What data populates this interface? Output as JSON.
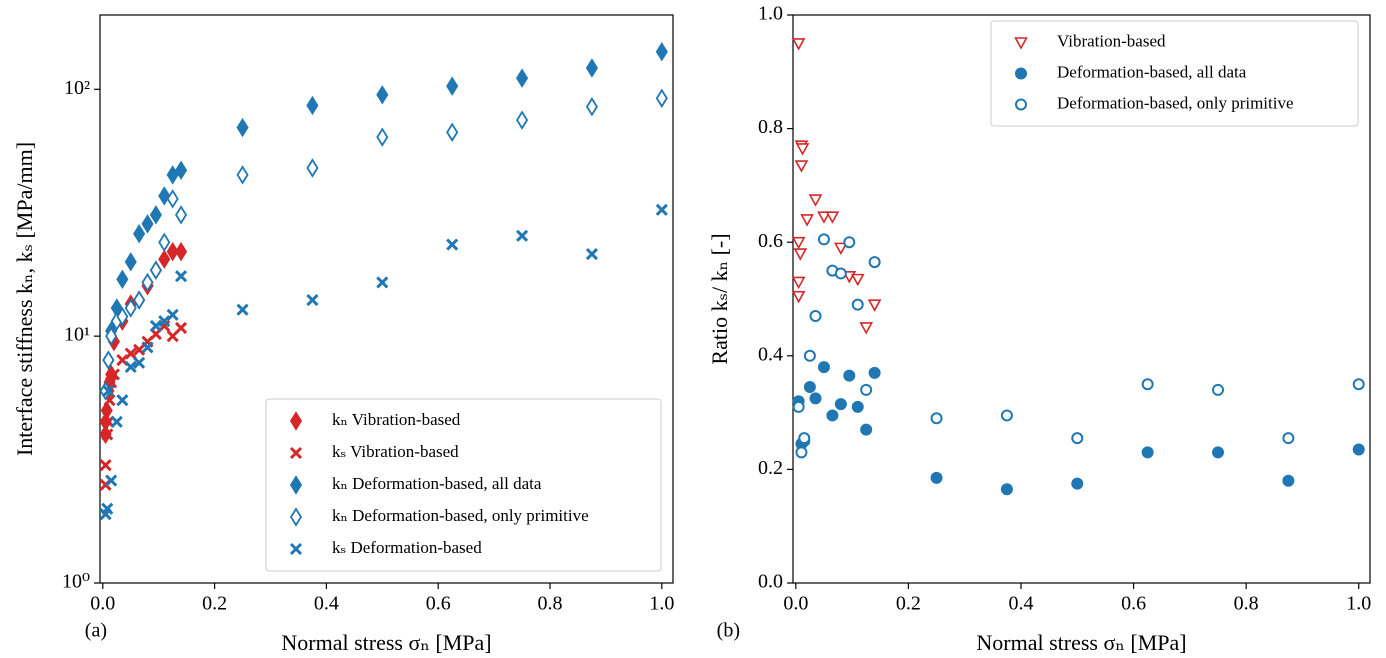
{
  "chart_data": [
    {
      "type": "scatter",
      "panel_label": "(a)",
      "xlabel": "Normal stress σₙ [MPa]",
      "ylabel": "Interface stiffness kₙ, kₛ [MPa/mm]",
      "log_y": true,
      "xlim": [
        -0.005,
        1.02
      ],
      "ylim": [
        1,
        200
      ],
      "xticks": [
        {
          "value": 0,
          "label": "0.0"
        },
        0.2,
        0.4,
        0.6,
        0.8,
        {
          "value": 1,
          "label": "1.0"
        }
      ],
      "yticks": [
        {
          "value": 1,
          "label": "10⁰"
        },
        {
          "value": 10,
          "label": "10¹"
        },
        {
          "value": 100,
          "label": "10²"
        }
      ],
      "legend": "lower right",
      "series": [
        {
          "name": "kₙ Vibration-based",
          "color": "#d62728",
          "marker": "diamond",
          "x": [
            0.005,
            0.005,
            0.007,
            0.01,
            0.012,
            0.015,
            0.02,
            0.035,
            0.05,
            0.065,
            0.08,
            0.095,
            0.11,
            0.125,
            0.14
          ],
          "values": [
            4.0,
            4.5,
            5.0,
            6.0,
            6.5,
            7.0,
            9.5,
            11.5,
            13.5,
            14,
            16,
            18.5,
            20.5,
            22,
            22
          ]
        },
        {
          "name": "kₛ Vibration-based",
          "color": "#d62728",
          "marker": "x",
          "x": [
            0.005,
            0.005,
            0.008,
            0.01,
            0.012,
            0.015,
            0.02,
            0.035,
            0.05,
            0.065,
            0.08,
            0.095,
            0.11,
            0.125,
            0.14
          ],
          "values": [
            2.5,
            3.0,
            4.0,
            4.5,
            5.5,
            6.5,
            7.0,
            8.0,
            8.5,
            8.8,
            9.5,
            10.2,
            11,
            10,
            10.8
          ]
        },
        {
          "name": "kₙ Deformation-based, all data",
          "color": "#1f77b4",
          "marker": "diamond",
          "x": [
            0.005,
            0.01,
            0.015,
            0.025,
            0.035,
            0.05,
            0.065,
            0.08,
            0.095,
            0.11,
            0.125,
            0.14,
            0.25,
            0.375,
            0.5,
            0.625,
            0.75,
            0.875,
            1.0
          ],
          "values": [
            6,
            8,
            10.5,
            13,
            17,
            20,
            26,
            28.5,
            31,
            37,
            45,
            47,
            70,
            86,
            95,
            103,
            111,
            122,
            142
          ]
        },
        {
          "name": "kₙ Deformation-based, only primitive",
          "color": "#1f77b4",
          "marker": "diamond-open",
          "x": [
            0.005,
            0.01,
            0.015,
            0.025,
            0.035,
            0.05,
            0.065,
            0.08,
            0.095,
            0.11,
            0.125,
            0.14,
            0.25,
            0.375,
            0.5,
            0.625,
            0.75,
            0.875,
            1.0
          ],
          "values": [
            6,
            8,
            10,
            11.5,
            12,
            13,
            14,
            16.5,
            18.5,
            24,
            36,
            31,
            45,
            48,
            64,
            67,
            75,
            85,
            92
          ]
        },
        {
          "name": "kₛ Deformation-based",
          "color": "#1f77b4",
          "marker": "x",
          "x": [
            0.005,
            0.008,
            0.01,
            0.015,
            0.025,
            0.035,
            0.05,
            0.065,
            0.08,
            0.095,
            0.11,
            0.125,
            0.14,
            0.25,
            0.375,
            0.5,
            0.625,
            0.75,
            0.875,
            1.0
          ],
          "values": [
            1.9,
            2.0,
            6,
            2.6,
            4.5,
            5.5,
            7.5,
            7.8,
            9,
            11,
            11.5,
            12.2,
            17.5,
            12.8,
            14,
            16.5,
            23.5,
            25.5,
            21.5,
            32.5
          ]
        }
      ]
    },
    {
      "type": "scatter",
      "panel_label": "(b)",
      "xlabel": "Normal stress σₙ [MPa]",
      "ylabel": "Ratio kₛ/ kₙ [-]",
      "log_y": false,
      "xlim": [
        -0.005,
        1.02
      ],
      "ylim": [
        0,
        1
      ],
      "xticks": [
        {
          "value": 0,
          "label": "0.0"
        },
        0.2,
        0.4,
        0.6,
        0.8,
        {
          "value": 1,
          "label": "1.0"
        }
      ],
      "yticks": [
        {
          "value": 0,
          "label": "0.0"
        },
        0.2,
        0.4,
        0.6,
        0.8,
        {
          "value": 1,
          "label": "1.0"
        }
      ],
      "legend": "upper right",
      "series": [
        {
          "name": "Vibration-based",
          "color": "#d62728",
          "marker": "triangle-down-open",
          "x": [
            0.005,
            0.005,
            0.005,
            0.005,
            0.008,
            0.01,
            0.012,
            0.01,
            0.02,
            0.035,
            0.05,
            0.065,
            0.08,
            0.095,
            0.11,
            0.125,
            0.14
          ],
          "values": [
            0.95,
            0.6,
            0.53,
            0.505,
            0.58,
            0.77,
            0.765,
            0.735,
            0.64,
            0.675,
            0.645,
            0.645,
            0.59,
            0.54,
            0.535,
            0.45,
            0.49
          ]
        },
        {
          "name": "Deformation-based, all data",
          "color": "#1f77b4",
          "marker": "circle",
          "x": [
            0.005,
            0.01,
            0.015,
            0.025,
            0.035,
            0.05,
            0.065,
            0.08,
            0.095,
            0.11,
            0.125,
            0.14,
            0.25,
            0.375,
            0.5,
            0.625,
            0.75,
            0.875,
            1.0
          ],
          "values": [
            0.32,
            0.245,
            0.25,
            0.345,
            0.325,
            0.38,
            0.295,
            0.315,
            0.365,
            0.31,
            0.27,
            0.37,
            0.185,
            0.165,
            0.175,
            0.23,
            0.23,
            0.18,
            0.235
          ]
        },
        {
          "name": "Deformation-based, only primitive",
          "color": "#1f77b4",
          "marker": "circle-open",
          "x": [
            0.005,
            0.01,
            0.015,
            0.025,
            0.035,
            0.05,
            0.065,
            0.08,
            0.095,
            0.11,
            0.125,
            0.14,
            0.25,
            0.375,
            0.5,
            0.625,
            0.75,
            0.875,
            1.0
          ],
          "values": [
            0.31,
            0.23,
            0.255,
            0.4,
            0.47,
            0.605,
            0.55,
            0.545,
            0.6,
            0.49,
            0.34,
            0.565,
            0.29,
            0.295,
            0.255,
            0.35,
            0.34,
            0.255,
            0.35
          ]
        }
      ]
    }
  ]
}
